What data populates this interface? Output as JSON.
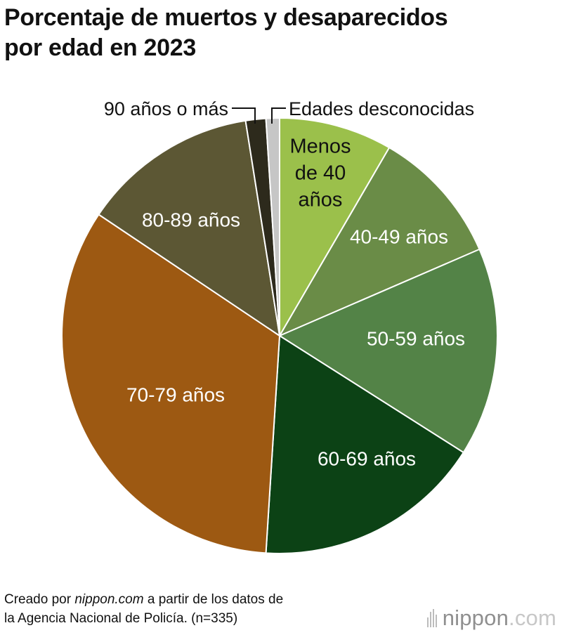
{
  "header": {
    "title_line1": "Porcentaje de muertos y desaparecidos",
    "title_line2": "por edad en 2023"
  },
  "chart_data": {
    "type": "pie",
    "title": "Porcentaje de muertos y desaparecidos por edad en 2023",
    "n": 335,
    "unit": "%",
    "start": "12 o'clock, clockwise",
    "slices": [
      {
        "label": "Menos de 40 años",
        "label_lines": [
          "Menos",
          "de 40",
          "años"
        ],
        "value": 8.4,
        "color": "#9bc04b",
        "text_color": "#111111"
      },
      {
        "label": "40-49 años",
        "label_lines": [
          "40-49 años"
        ],
        "value": 10.1,
        "color": "#6a8c47",
        "text_color": "#ffffff"
      },
      {
        "label": "50-59 años",
        "label_lines": [
          "50-59 años"
        ],
        "value": 15.5,
        "color": "#538347",
        "text_color": "#ffffff"
      },
      {
        "label": "60-69 años",
        "label_lines": [
          "60-69 años"
        ],
        "value": 17.0,
        "color": "#0c4215",
        "text_color": "#ffffff"
      },
      {
        "label": "70-79 años",
        "label_lines": [
          "70-79 años"
        ],
        "value": 33.4,
        "color": "#9d5912",
        "text_color": "#ffffff"
      },
      {
        "label": "80-89 años",
        "label_lines": [
          "80-89 años"
        ],
        "value": 13.1,
        "color": "#5c5734",
        "text_color": "#ffffff"
      },
      {
        "label": "90 años o más",
        "label_lines": [
          "90 años o más"
        ],
        "value": 1.5,
        "color": "#2d2a1c",
        "text_color": "#111111",
        "callout": true
      },
      {
        "label": "Edades desconocidas",
        "label_lines": [
          "Edades desconocidas"
        ],
        "value": 1.0,
        "color": "#c6c6c6",
        "text_color": "#111111",
        "callout": true
      }
    ]
  },
  "footer": {
    "line1_prefix": "Creado por ",
    "line1_source": "nippon.com",
    "line1_suffix": " a partir de los datos de",
    "line2": "la Agencia Nacional de Policía. (n=335)"
  },
  "brand": {
    "name_main": "nippon",
    "name_tld": ".com"
  }
}
